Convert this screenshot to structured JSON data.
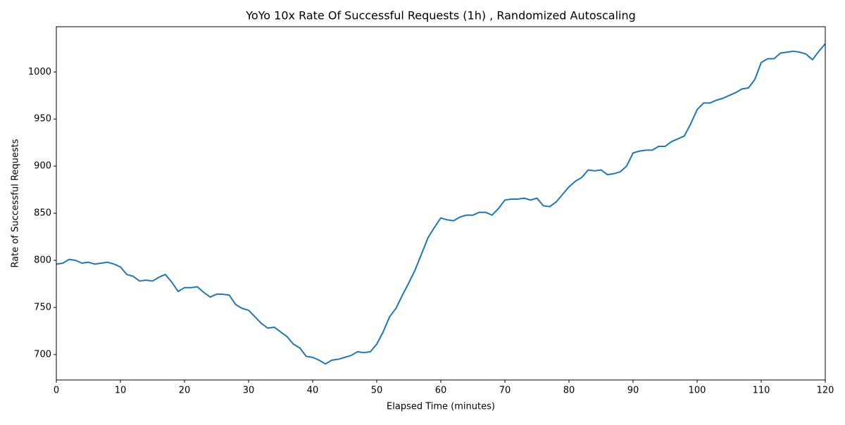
{
  "chart_data": {
    "type": "line",
    "title": "YoYo 10x Rate Of Successful Requests (1h) , Randomized Autoscaling",
    "xlabel": "Elapsed Time (minutes)",
    "ylabel": "Rate of Successful Requests",
    "x": [
      0,
      1,
      2,
      3,
      4,
      5,
      6,
      7,
      8,
      9,
      10,
      11,
      12,
      13,
      14,
      15,
      16,
      17,
      18,
      19,
      20,
      21,
      22,
      23,
      24,
      25,
      26,
      27,
      28,
      29,
      30,
      31,
      32,
      33,
      34,
      35,
      36,
      37,
      38,
      39,
      40,
      41,
      42,
      43,
      44,
      45,
      46,
      47,
      48,
      49,
      50,
      51,
      52,
      53,
      54,
      55,
      56,
      57,
      58,
      59,
      60,
      61,
      62,
      63,
      64,
      65,
      66,
      67,
      68,
      69,
      70,
      71,
      72,
      73,
      74,
      75,
      76,
      77,
      78,
      79,
      80,
      81,
      82,
      83,
      84,
      85,
      86,
      87,
      88,
      89,
      90,
      91,
      92,
      93,
      94,
      95,
      96,
      97,
      98,
      99,
      100,
      101,
      102,
      103,
      104,
      105,
      106,
      107,
      108,
      109,
      110,
      111,
      112,
      113,
      114,
      115,
      116,
      117,
      118,
      119,
      120
    ],
    "series": [
      {
        "name": "Rate of Successful Requests",
        "color": "#1f77b4",
        "values": [
          796,
          797,
          801,
          800,
          797,
          798,
          796,
          797,
          798,
          796,
          793,
          785,
          783,
          778,
          779,
          778,
          782,
          785,
          777,
          767,
          771,
          771,
          772,
          766,
          761,
          764,
          764,
          763,
          753,
          749,
          747,
          740,
          733,
          728,
          729,
          724,
          719,
          711,
          707,
          698,
          697,
          694,
          690,
          694,
          695,
          697,
          699,
          703,
          702,
          703,
          711,
          724,
          740,
          749,
          763,
          776,
          790,
          807,
          824,
          835,
          845,
          843,
          842,
          846,
          848,
          848,
          851,
          851,
          848,
          855,
          864,
          865,
          865,
          866,
          864,
          866,
          858,
          857,
          862,
          870,
          878,
          884,
          888,
          896,
          895,
          896,
          891,
          892,
          894,
          900,
          914,
          916,
          917,
          917,
          921,
          921,
          926,
          929,
          932,
          945,
          960,
          967,
          967,
          970,
          972,
          975,
          978,
          982,
          983,
          992,
          1010,
          1014,
          1014,
          1020,
          1021,
          1022,
          1021,
          1019,
          1013,
          1022,
          1030
        ]
      }
    ],
    "xlim": [
      0,
      120
    ],
    "ylim": [
      673,
      1048
    ],
    "xticks": [
      0,
      10,
      20,
      30,
      40,
      50,
      60,
      70,
      80,
      90,
      100,
      110,
      120
    ],
    "yticks": [
      700,
      750,
      800,
      850,
      900,
      950,
      1000
    ],
    "grid": false
  }
}
